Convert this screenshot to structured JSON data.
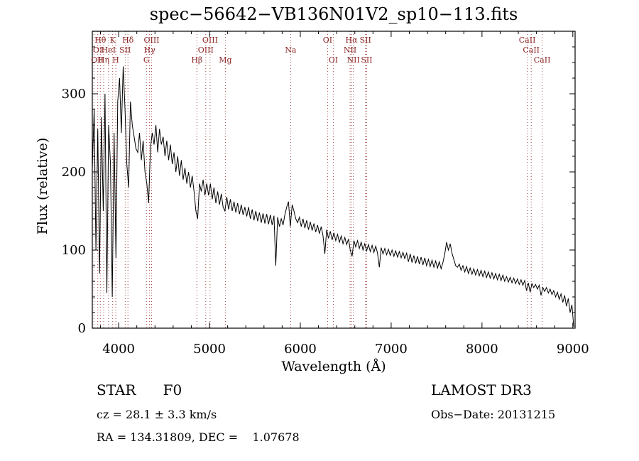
{
  "chart_data": {
    "type": "line",
    "title": "spec−56642−VB136N01V2_sp10−113.fits",
    "xlabel": "Wavelength (Å)",
    "ylabel": "Flux (relative)",
    "xlim": [
      3710,
      9025
    ],
    "ylim": [
      0,
      380
    ],
    "xticks": [
      4000,
      5000,
      6000,
      7000,
      8000,
      9000
    ],
    "yticks": [
      0,
      100,
      200,
      300
    ],
    "x_minor_step": 200,
    "y_minor_step": 20,
    "grid": false,
    "legend": "none",
    "colors": {
      "trace": "#000000",
      "line_marker": "#a04545",
      "line_label": "#8b2323"
    },
    "series": [
      {
        "name": "flux",
        "x_start": 3710,
        "x_step": 20,
        "values": [
          205,
          280,
          100,
          255,
          70,
          270,
          150,
          300,
          45,
          260,
          210,
          40,
          250,
          90,
          290,
          320,
          250,
          335,
          280,
          210,
          180,
          290,
          260,
          245,
          230,
          225,
          250,
          215,
          240,
          200,
          185,
          160,
          230,
          250,
          235,
          260,
          225,
          255,
          235,
          245,
          220,
          240,
          215,
          235,
          210,
          225,
          200,
          220,
          195,
          215,
          190,
          205,
          185,
          200,
          180,
          195,
          175,
          150,
          140,
          185,
          175,
          190,
          170,
          185,
          170,
          185,
          165,
          180,
          160,
          175,
          158,
          172,
          155,
          150,
          168,
          152,
          165,
          150,
          162,
          148,
          160,
          146,
          158,
          145,
          155,
          143,
          155,
          140,
          152,
          138,
          150,
          137,
          148,
          135,
          147,
          134,
          146,
          133,
          145,
          132,
          144,
          80,
          142,
          130,
          140,
          132,
          145,
          155,
          162,
          130,
          158,
          150,
          140,
          135,
          142,
          130,
          140,
          128,
          138,
          126,
          136,
          125,
          134,
          123,
          132,
          121,
          130,
          118,
          95,
          126,
          115,
          124,
          113,
          122,
          112,
          120,
          110,
          118,
          108,
          116,
          107,
          114,
          100,
          92,
          112,
          104,
          112,
          102,
          110,
          100,
          108,
          99,
          107,
          98,
          106,
          97,
          105,
          96,
          78,
          103,
          95,
          102,
          94,
          101,
          93,
          100,
          92,
          99,
          91,
          98,
          90,
          97,
          89,
          96,
          85,
          95,
          84,
          93,
          83,
          92,
          82,
          91,
          81,
          90,
          80,
          88,
          79,
          87,
          78,
          86,
          77,
          85,
          76,
          84,
          95,
          110,
          100,
          108,
          96,
          88,
          80,
          78,
          82,
          74,
          80,
          72,
          79,
          70,
          77,
          69,
          76,
          68,
          75,
          67,
          74,
          66,
          73,
          65,
          72,
          64,
          71,
          63,
          70,
          62,
          69,
          61,
          68,
          60,
          66,
          59,
          65,
          58,
          64,
          57,
          63,
          56,
          62,
          55,
          61,
          48,
          58,
          46,
          57,
          52,
          56,
          50,
          55,
          42,
          52,
          47,
          52,
          45,
          50,
          43,
          48,
          40,
          46,
          37,
          44,
          33,
          42,
          28,
          38,
          20,
          30,
          2
        ]
      }
    ],
    "spectral_lines": [
      {
        "label": "OII",
        "wavelength": 3727,
        "row": 3
      },
      {
        "label": "OI",
        "wavelength": 3770,
        "row": 2
      },
      {
        "label": "Hθ",
        "wavelength": 3798,
        "row": 1
      },
      {
        "label": "Hη",
        "wavelength": 3835,
        "row": 3
      },
      {
        "label": "HeI",
        "wavelength": 3889,
        "row": 2
      },
      {
        "label": "K",
        "wavelength": 3934,
        "row": 1
      },
      {
        "label": "H",
        "wavelength": 3969,
        "row": 3
      },
      {
        "label": "SII",
        "wavelength": 4072,
        "row": 2
      },
      {
        "label": "Hδ",
        "wavelength": 4102,
        "row": 1
      },
      {
        "label": "G",
        "wavelength": 4306,
        "row": 3
      },
      {
        "label": "Hγ",
        "wavelength": 4340,
        "row": 2
      },
      {
        "label": "OIII",
        "wavelength": 4363,
        "row": 1
      },
      {
        "label": "Hβ",
        "wavelength": 4861,
        "row": 3
      },
      {
        "label": "OIII",
        "wavelength": 4959,
        "row": 2
      },
      {
        "label": "OIII",
        "wavelength": 5007,
        "row": 1
      },
      {
        "label": "Mg",
        "wavelength": 5175,
        "row": 3
      },
      {
        "label": "Na",
        "wavelength": 5894,
        "row": 2
      },
      {
        "label": "OI",
        "wavelength": 6300,
        "row": 1
      },
      {
        "label": "OI",
        "wavelength": 6363,
        "row": 3
      },
      {
        "label": "NII",
        "wavelength": 6548,
        "row": 2
      },
      {
        "label": "Hα",
        "wavelength": 6563,
        "row": 1
      },
      {
        "label": "NII",
        "wavelength": 6584,
        "row": 3
      },
      {
        "label": "SII",
        "wavelength": 6717,
        "row": 1
      },
      {
        "label": "SII",
        "wavelength": 6731,
        "row": 3
      },
      {
        "label": "CaII",
        "wavelength": 8498,
        "row": 1
      },
      {
        "label": "CaII",
        "wavelength": 8542,
        "row": 2
      },
      {
        "label": "CaII",
        "wavelength": 8662,
        "row": 3
      }
    ]
  },
  "footer": {
    "object_class": "STAR      F0",
    "survey": "LAMOST DR3",
    "cz": "cz = 28.1 ± 3.3 km/s",
    "obs_date": "Obs−Date: 20131215",
    "ra_dec": "RA = 134.31809, DEC =    1.07678"
  }
}
